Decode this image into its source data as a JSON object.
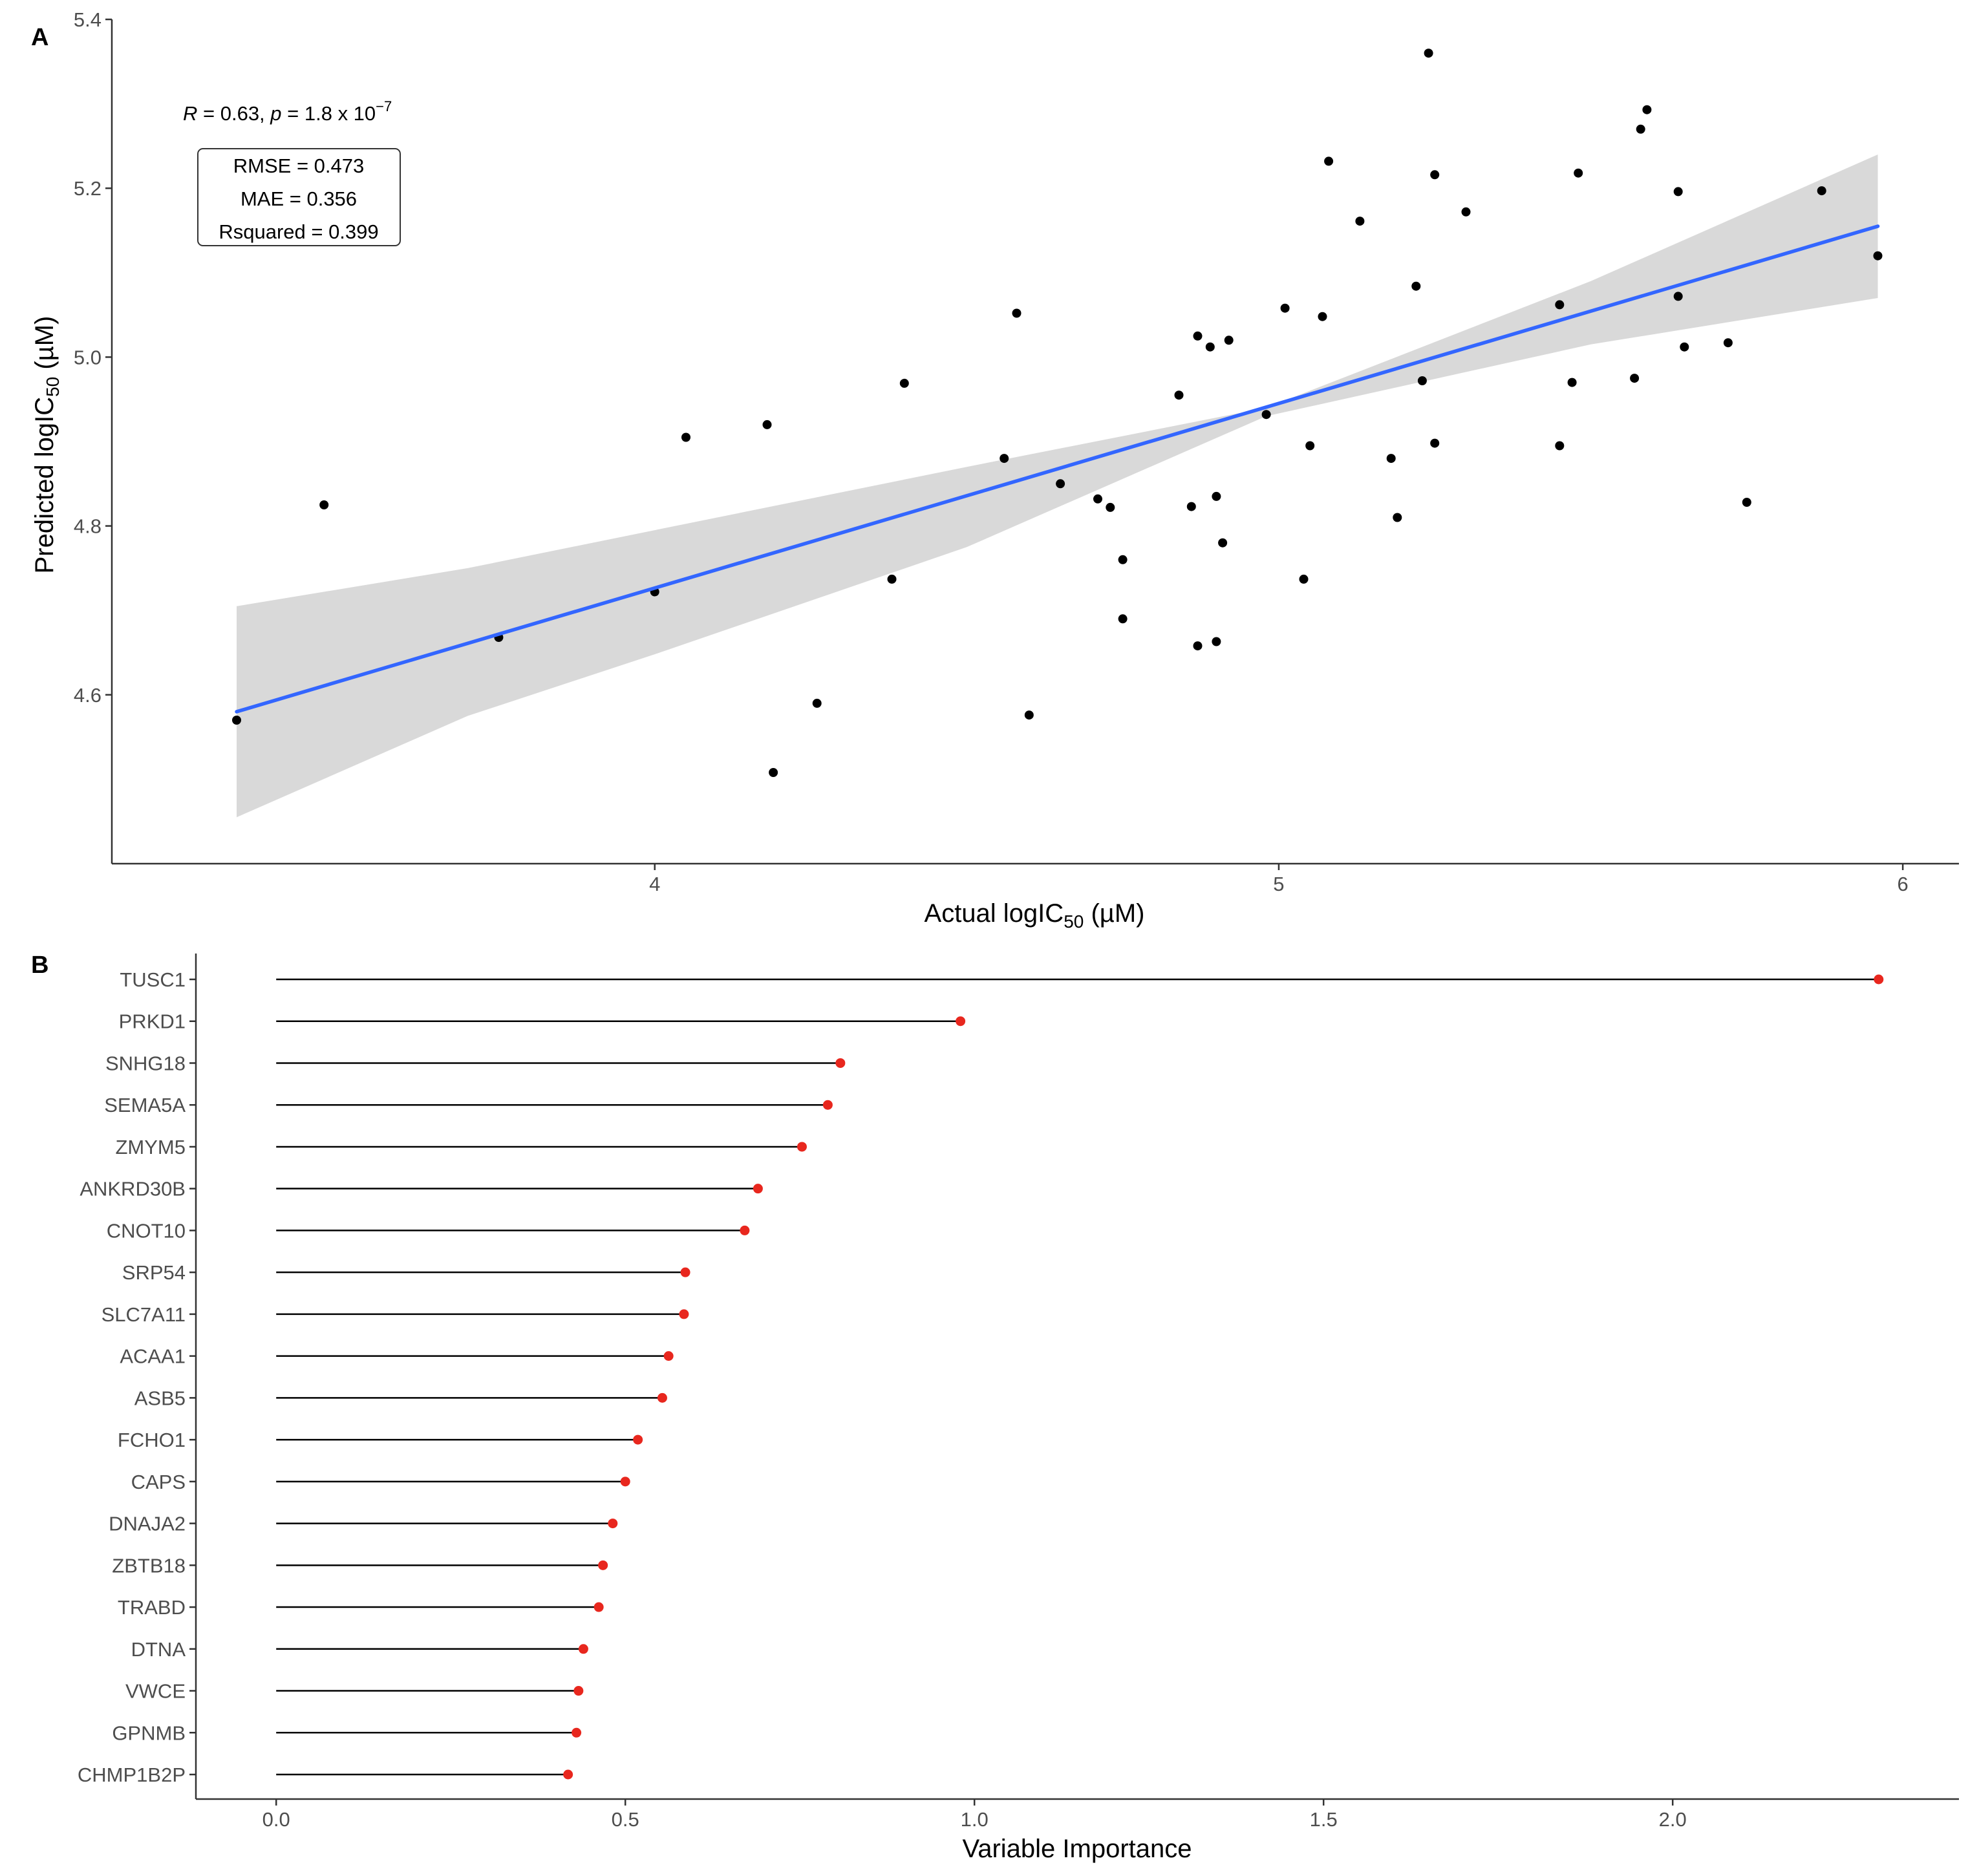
{
  "chart_data": [
    {
      "panel": "A",
      "type": "scatter",
      "xlabel": {
        "prefix": "Actual logIC",
        "sub": "50",
        "suffix": " (µM)"
      },
      "ylabel": {
        "prefix": "Predicted logIC",
        "sub": "50",
        "suffix": " (µM)"
      },
      "xlim": [
        3.13,
        6.09
      ],
      "ylim": [
        4.4,
        5.4
      ],
      "x_ticks": [
        {
          "value": 4,
          "label": "4"
        },
        {
          "value": 5,
          "label": "5"
        },
        {
          "value": 6,
          "label": "6"
        }
      ],
      "y_ticks": [
        {
          "value": 4.6,
          "label": "4.6"
        },
        {
          "value": 4.8,
          "label": "4.8"
        },
        {
          "value": 5.0,
          "label": "5.0"
        },
        {
          "value": 5.2,
          "label": "5.2"
        },
        {
          "value": 5.4,
          "label": "5.4"
        }
      ],
      "correlation": {
        "r_label": "R",
        "r_value": " = 0.63, ",
        "p_label": "p",
        "p_value": " = 1.8 x 10",
        "p_exponent": "−7"
      },
      "metrics": [
        "RMSE = 0.473",
        "MAE = 0.356",
        "Rsquared = 0.399"
      ],
      "fit_line": {
        "x": [
          3.33,
          5.96
        ],
        "y": [
          4.58,
          5.155
        ],
        "color": "#3366FF"
      },
      "confidence_band": {
        "x": [
          3.33,
          3.7,
          4.0,
          4.5,
          4.98,
          5.5,
          5.96
        ],
        "lower": [
          4.455,
          4.575,
          4.648,
          4.775,
          4.93,
          5.015,
          5.07
        ],
        "upper": [
          4.705,
          4.75,
          4.795,
          4.87,
          4.94,
          5.09,
          5.24
        ],
        "color": "#D9D9D9"
      },
      "points": [
        [
          3.33,
          4.57
        ],
        [
          3.47,
          4.825
        ],
        [
          3.75,
          4.668
        ],
        [
          4.0,
          4.722
        ],
        [
          4.05,
          4.905
        ],
        [
          4.18,
          4.92
        ],
        [
          4.19,
          4.508
        ],
        [
          4.26,
          4.59
        ],
        [
          4.38,
          4.737
        ],
        [
          4.4,
          4.969
        ],
        [
          4.56,
          4.88
        ],
        [
          4.58,
          5.052
        ],
        [
          4.6,
          4.576
        ],
        [
          4.65,
          4.85
        ],
        [
          4.71,
          4.832
        ],
        [
          4.73,
          4.822
        ],
        [
          4.75,
          4.76
        ],
        [
          4.75,
          4.69
        ],
        [
          4.84,
          4.955
        ],
        [
          4.86,
          4.823
        ],
        [
          4.87,
          5.025
        ],
        [
          4.87,
          4.658
        ],
        [
          4.89,
          5.012
        ],
        [
          4.9,
          4.663
        ],
        [
          4.9,
          4.835
        ],
        [
          4.91,
          4.78
        ],
        [
          4.92,
          5.02
        ],
        [
          4.98,
          4.932
        ],
        [
          5.01,
          5.058
        ],
        [
          5.04,
          4.737
        ],
        [
          5.05,
          4.895
        ],
        [
          5.07,
          5.048
        ],
        [
          5.08,
          5.232
        ],
        [
          5.13,
          5.161
        ],
        [
          5.18,
          4.88
        ],
        [
          5.19,
          4.81
        ],
        [
          5.22,
          5.084
        ],
        [
          5.23,
          4.972
        ],
        [
          5.24,
          5.36
        ],
        [
          5.25,
          5.216
        ],
        [
          5.25,
          4.898
        ],
        [
          5.3,
          5.172
        ],
        [
          5.45,
          5.062
        ],
        [
          5.45,
          4.895
        ],
        [
          5.47,
          4.97
        ],
        [
          5.48,
          5.218
        ],
        [
          5.57,
          4.975
        ],
        [
          5.58,
          5.27
        ],
        [
          5.59,
          5.293
        ],
        [
          5.64,
          5.196
        ],
        [
          5.64,
          5.072
        ],
        [
          5.65,
          5.012
        ],
        [
          5.72,
          5.017
        ],
        [
          5.75,
          4.828
        ],
        [
          5.87,
          5.197
        ],
        [
          5.96,
          5.12
        ]
      ]
    },
    {
      "panel": "B",
      "type": "lollipop",
      "xlabel": "Variable Importance",
      "xlim": [
        -0.115,
        2.41
      ],
      "x_ticks": [
        {
          "value": 0.0,
          "label": "0.0"
        },
        {
          "value": 0.5,
          "label": "0.5"
        },
        {
          "value": 1.0,
          "label": "1.0"
        },
        {
          "value": 1.5,
          "label": "1.5"
        },
        {
          "value": 2.0,
          "label": "2.0"
        }
      ],
      "point_color": "#E8271E",
      "categories": [
        "TUSC1",
        "PRKD1",
        "SNHG18",
        "SEMA5A",
        "ZMYM5",
        "ANKRD30B",
        "CNOT10",
        "SRP54",
        "SLC7A11",
        "ACAA1",
        "ASB5",
        "FCHO1",
        "CAPS",
        "DNAJA2",
        "ZBTB18",
        "TRABD",
        "DTNA",
        "VWCE",
        "GPNMB",
        "CHMP1B2P"
      ],
      "values": [
        2.295,
        0.98,
        0.808,
        0.79,
        0.753,
        0.69,
        0.671,
        0.586,
        0.584,
        0.562,
        0.553,
        0.518,
        0.5,
        0.482,
        0.468,
        0.462,
        0.44,
        0.433,
        0.43,
        0.418
      ]
    }
  ],
  "labels": {
    "panel_a": "A",
    "panel_b": "B"
  }
}
